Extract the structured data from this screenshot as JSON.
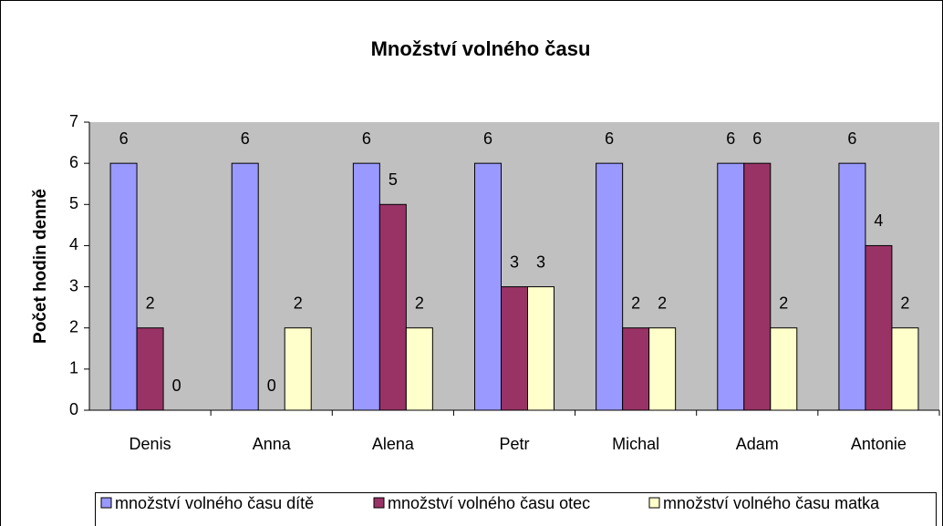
{
  "chart_data": {
    "type": "bar",
    "title": "Množství volného času",
    "y_label": "Počet hodin denně",
    "categories": [
      "Denis",
      "Anna",
      "Alena",
      "Petr",
      "Michal",
      "Adam",
      "Antonie"
    ],
    "series": [
      {
        "name": "množství volného času dítě",
        "color": "#9999ff",
        "values": [
          6,
          6,
          6,
          6,
          6,
          6,
          6
        ]
      },
      {
        "name": "množství volného času otec",
        "color": "#993366",
        "values": [
          2,
          0,
          5,
          3,
          2,
          6,
          4
        ]
      },
      {
        "name": "množství volného času matka",
        "color": "#ffffcc",
        "values": [
          0,
          2,
          2,
          3,
          2,
          2,
          2
        ]
      }
    ],
    "ylim": [
      0,
      7
    ],
    "yticks": [
      0,
      1,
      2,
      3,
      4,
      5,
      6,
      7
    ],
    "legend": "bottom"
  }
}
